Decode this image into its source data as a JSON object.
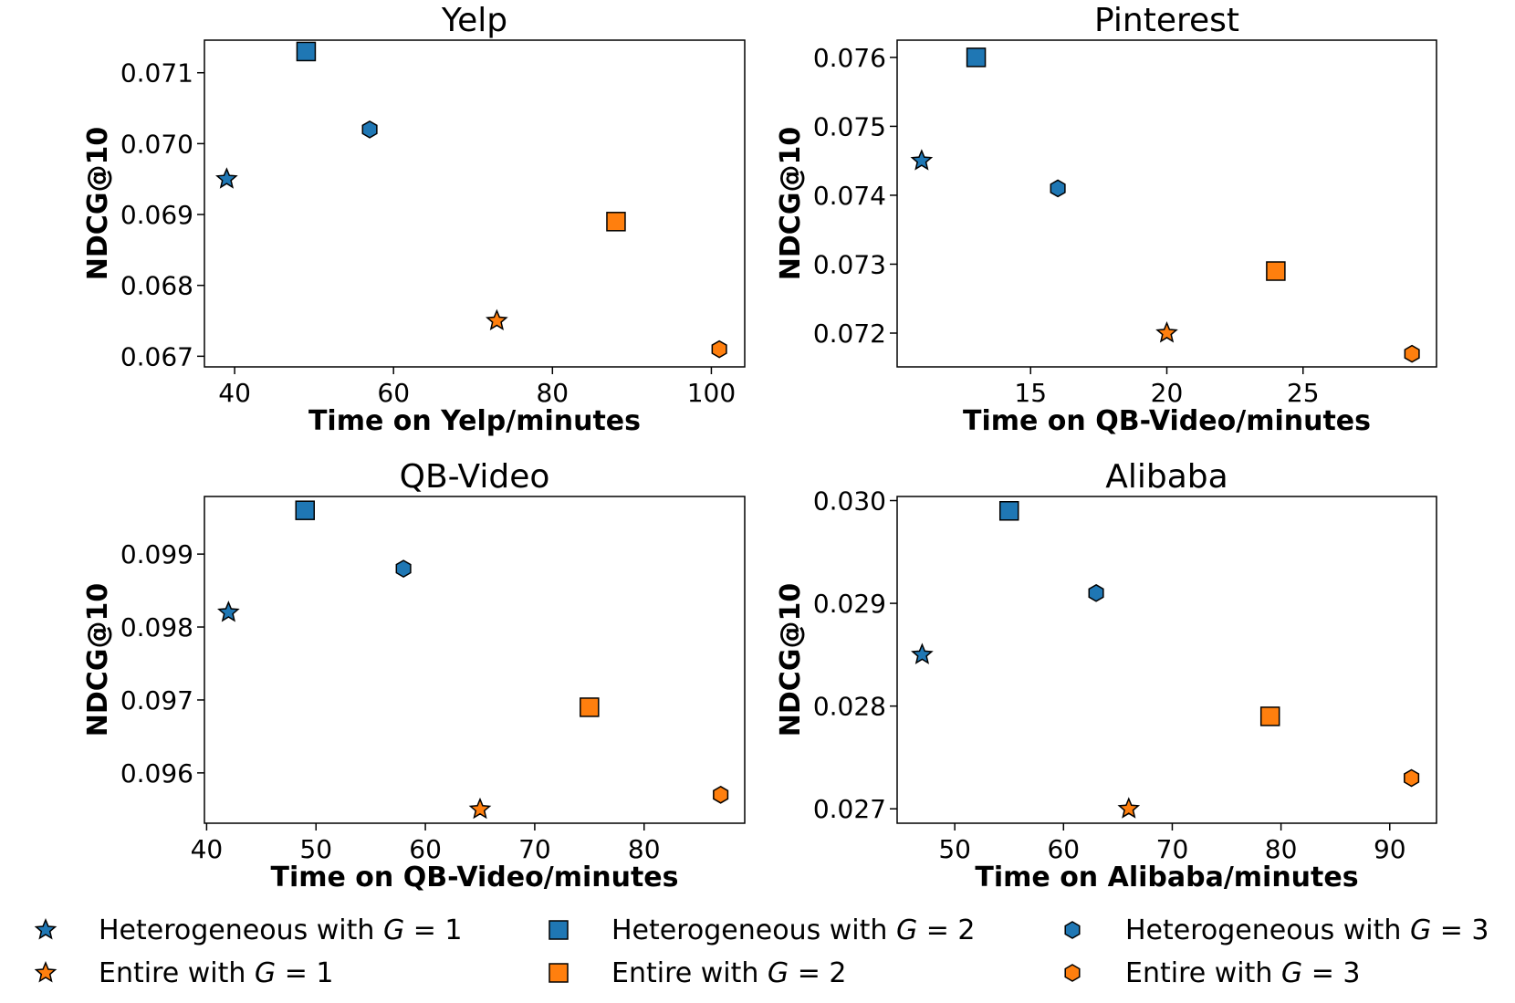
{
  "chart_data": [
    {
      "type": "scatter",
      "title": "Yelp",
      "xlabel": "Time on Yelp/minutes",
      "ylabel": "NDCG@10",
      "xlim": [
        36.2,
        104.2
      ],
      "ylim": [
        0.06685,
        0.07146
      ],
      "xticks": [
        40,
        60,
        80,
        100
      ],
      "yticks": [
        0.067,
        0.068,
        0.069,
        0.07,
        0.071
      ],
      "ytick_labels": [
        "0.067",
        "0.068",
        "0.069",
        "0.070",
        "0.071"
      ],
      "xtick_labels": [
        "40",
        "60",
        "80",
        "100"
      ],
      "points": [
        {
          "series": "het1",
          "x": 39,
          "y": 0.0695
        },
        {
          "series": "het2",
          "x": 49,
          "y": 0.0713
        },
        {
          "series": "het3",
          "x": 57,
          "y": 0.0702
        },
        {
          "series": "ent1",
          "x": 73,
          "y": 0.0675
        },
        {
          "series": "ent2",
          "x": 88,
          "y": 0.0689
        },
        {
          "series": "ent3",
          "x": 101,
          "y": 0.0671
        }
      ]
    },
    {
      "type": "scatter",
      "title": "Pinterest",
      "xlabel": "Time on QB-Video/minutes",
      "ylabel": "NDCG@10",
      "xlim": [
        10.1,
        29.9
      ],
      "ylim": [
        0.07151,
        0.07625
      ],
      "xticks": [
        15,
        20,
        25
      ],
      "yticks": [
        0.072,
        0.073,
        0.074,
        0.075,
        0.076
      ],
      "ytick_labels": [
        "0.072",
        "0.073",
        "0.074",
        "0.075",
        "0.076"
      ],
      "xtick_labels": [
        "15",
        "20",
        "25"
      ],
      "points": [
        {
          "series": "het1",
          "x": 11,
          "y": 0.0745
        },
        {
          "series": "het2",
          "x": 13,
          "y": 0.076
        },
        {
          "series": "het3",
          "x": 16,
          "y": 0.0741
        },
        {
          "series": "ent1",
          "x": 20,
          "y": 0.072
        },
        {
          "series": "ent2",
          "x": 24,
          "y": 0.0729
        },
        {
          "series": "ent3",
          "x": 29,
          "y": 0.0717
        }
      ]
    },
    {
      "type": "scatter",
      "title": "QB-Video",
      "xlabel": "Time on QB-Video/minutes",
      "ylabel": "NDCG@10",
      "xlim": [
        39.8,
        89.2
      ],
      "ylim": [
        0.09531,
        0.09979
      ],
      "xticks": [
        40,
        50,
        60,
        70,
        80
      ],
      "yticks": [
        0.096,
        0.097,
        0.098,
        0.099
      ],
      "ytick_labels": [
        "0.096",
        "0.097",
        "0.098",
        "0.099"
      ],
      "xtick_labels": [
        "40",
        "50",
        "60",
        "70",
        "80"
      ],
      "points": [
        {
          "series": "het1",
          "x": 42,
          "y": 0.0982
        },
        {
          "series": "het2",
          "x": 49,
          "y": 0.0996
        },
        {
          "series": "het3",
          "x": 58,
          "y": 0.0988
        },
        {
          "series": "ent1",
          "x": 65,
          "y": 0.0955
        },
        {
          "series": "ent2",
          "x": 75,
          "y": 0.0969
        },
        {
          "series": "ent3",
          "x": 87,
          "y": 0.0957
        }
      ]
    },
    {
      "type": "scatter",
      "title": "Alibaba",
      "xlabel": "Time on Alibaba/minutes",
      "ylabel": "NDCG@10",
      "xlim": [
        44.7,
        94.3
      ],
      "ylim": [
        0.02686,
        0.03004
      ],
      "xticks": [
        50,
        60,
        70,
        80,
        90
      ],
      "yticks": [
        0.027,
        0.028,
        0.029,
        0.03
      ],
      "ytick_labels": [
        "0.027",
        "0.028",
        "0.029",
        "0.030"
      ],
      "xtick_labels": [
        "50",
        "60",
        "70",
        "80",
        "90"
      ],
      "points": [
        {
          "series": "het1",
          "x": 47,
          "y": 0.0285
        },
        {
          "series": "het2",
          "x": 55,
          "y": 0.0299
        },
        {
          "series": "het3",
          "x": 63,
          "y": 0.0291
        },
        {
          "series": "ent1",
          "x": 66,
          "y": 0.027
        },
        {
          "series": "ent2",
          "x": 79,
          "y": 0.0279
        },
        {
          "series": "ent3",
          "x": 92,
          "y": 0.0273
        }
      ]
    }
  ],
  "legend": {
    "placement": "bottom",
    "entries": [
      {
        "key": "het1",
        "prefix": "Heterogeneous with ",
        "var": "G",
        "suffix": " = 1",
        "marker": "star",
        "color": "#1f77b4"
      },
      {
        "key": "het2",
        "prefix": "Heterogeneous with ",
        "var": "G",
        "suffix": " = 2",
        "marker": "square",
        "color": "#1f77b4"
      },
      {
        "key": "het3",
        "prefix": "Heterogeneous with ",
        "var": "G",
        "suffix": " = 3",
        "marker": "hexagon",
        "color": "#1f77b4"
      },
      {
        "key": "ent1",
        "prefix": "Entire with ",
        "var": "G",
        "suffix": " = 1",
        "marker": "star",
        "color": "#ff7f0e"
      },
      {
        "key": "ent2",
        "prefix": "Entire with ",
        "var": "G",
        "suffix": " = 2",
        "marker": "square",
        "color": "#ff7f0e"
      },
      {
        "key": "ent3",
        "prefix": "Entire with ",
        "var": "G",
        "suffix": " = 3",
        "marker": "hexagon",
        "color": "#ff7f0e"
      }
    ]
  },
  "colors": {
    "heterogeneous": "#1f77b4",
    "entire": "#ff7f0e",
    "edge": "#000000"
  }
}
